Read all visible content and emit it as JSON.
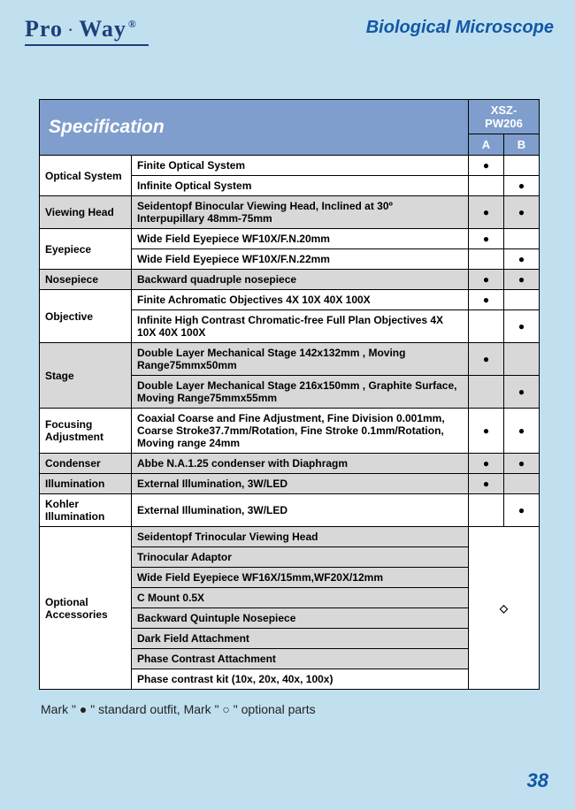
{
  "brand": {
    "part1": "Pro",
    "part2": "Way",
    "reg": "®"
  },
  "doc_title": "Biological Microscope",
  "spec_label": "Specification",
  "model": "XSZ-PW206",
  "col_a": "A",
  "col_b": "B",
  "rows": {
    "optical_system": "Optical System",
    "finite_os": "Finite Optical System",
    "infinite_os": "Infinite Optical System",
    "viewing_head": "Viewing Head",
    "viewing_head_desc": "Seidentopf Binocular Viewing Head, Inclined at 30º Interpupillary 48mm-75mm",
    "eyepiece": "Eyepiece",
    "eyepiece_a": "Wide Field Eyepiece WF10X/F.N.20mm",
    "eyepiece_b": "Wide Field Eyepiece WF10X/F.N.22mm",
    "nosepiece": "Nosepiece",
    "nosepiece_desc": "Backward quadruple nosepiece",
    "objective": "Objective",
    "objective_a": "Finite Achromatic Objectives 4X 10X 40X 100X",
    "objective_b": "Infinite High Contrast Chromatic-free Full Plan Objectives 4X 10X 40X 100X",
    "stage": "Stage",
    "stage_a": "Double Layer Mechanical Stage 142x132mm , Moving Range75mmx50mm",
    "stage_b": "Double Layer Mechanical Stage 216x150mm , Graphite Surface, Moving Range75mmx55mm",
    "focusing": "Focusing Adjustment",
    "focusing_desc": "Coaxial Coarse and Fine Adjustment, Fine Division 0.001mm, Coarse Stroke37.7mm/Rotation, Fine Stroke 0.1mm/Rotation, Moving range 24mm",
    "condenser": "Condenser",
    "condenser_desc": "Abbe N.A.1.25 condenser with Diaphragm",
    "illumination": "Illumination",
    "illumination_desc": "External Illumination, 3W/LED",
    "kohler": "Kohler Illumination",
    "kohler_desc": "External Illumination, 3W/LED",
    "optional": "Optional Accessories",
    "opt1": "Seidentopf Trinocular Viewing Head",
    "opt2": "Trinocular Adaptor",
    "opt3": "Wide Field Eyepiece WF16X/15mm,WF20X/12mm",
    "opt4": "C Mount 0.5X",
    "opt5": "Backward Quintuple Nosepiece",
    "opt6": "Dark Field Attachment",
    "opt7": "Phase Contrast Attachment",
    "opt8": "Phase contrast kit (10x, 20x, 40x, 100x)"
  },
  "marks": {
    "filled": "●",
    "open": "◇"
  },
  "footnote": "Mark \" ● \" standard outfit,  Mark \" ○ \" optional parts",
  "page_num": "38"
}
